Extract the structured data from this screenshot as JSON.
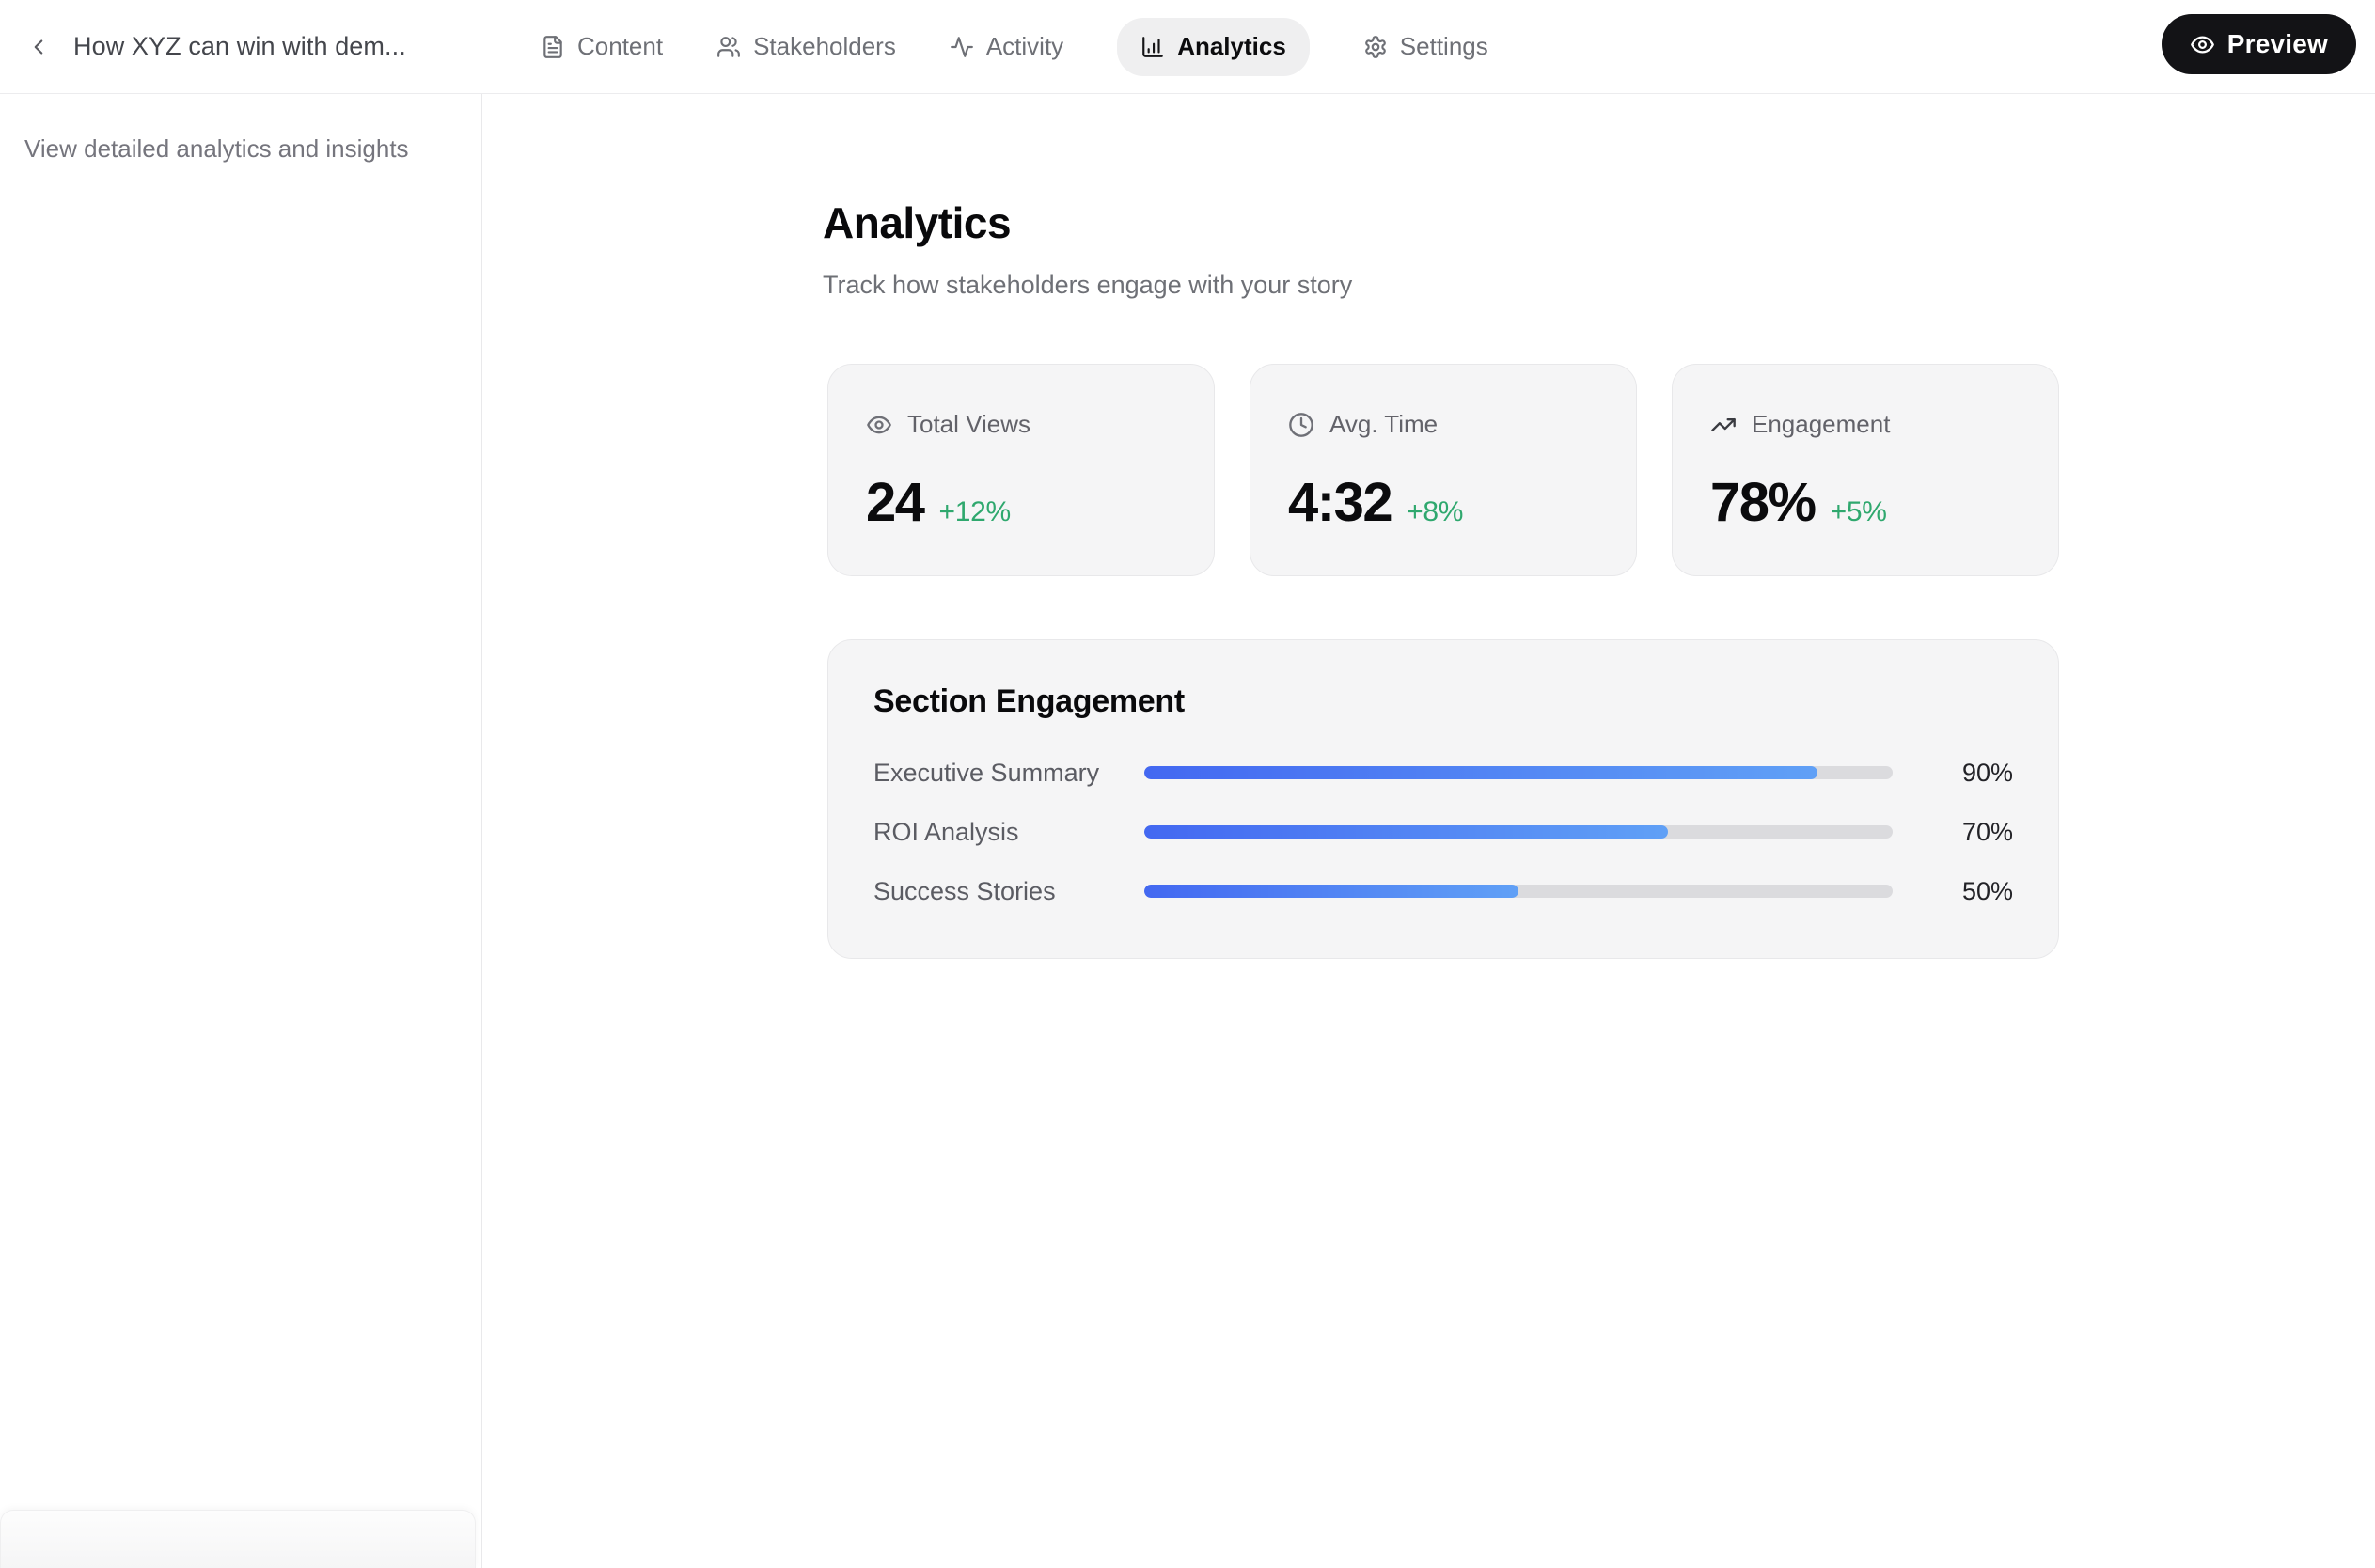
{
  "header": {
    "document_title": "How XYZ can win with dem...",
    "tabs": [
      {
        "label": "Content",
        "icon": "file-text-icon",
        "active": false
      },
      {
        "label": "Stakeholders",
        "icon": "users-icon",
        "active": false
      },
      {
        "label": "Activity",
        "icon": "activity-icon",
        "active": false
      },
      {
        "label": "Analytics",
        "icon": "bar-chart-icon",
        "active": true
      },
      {
        "label": "Settings",
        "icon": "gear-icon",
        "active": false
      }
    ],
    "preview_button": {
      "label": "Preview",
      "icon": "eye-icon"
    }
  },
  "sidebar": {
    "description": "View detailed analytics and insights"
  },
  "main": {
    "title": "Analytics",
    "subtitle": "Track how stakeholders engage with your story",
    "stats": [
      {
        "label": "Total Views",
        "icon": "eye-icon",
        "value": "24",
        "delta": "+12%"
      },
      {
        "label": "Avg. Time",
        "icon": "clock-icon",
        "value": "4:32",
        "delta": "+8%"
      },
      {
        "label": "Engagement",
        "icon": "trending-up-icon",
        "value": "78%",
        "delta": "+5%"
      }
    ],
    "section_engagement": {
      "title": "Section Engagement",
      "rows": [
        {
          "label": "Executive Summary",
          "percent": 90,
          "percent_label": "90%"
        },
        {
          "label": "ROI Analysis",
          "percent": 70,
          "percent_label": "70%"
        },
        {
          "label": "Success Stories",
          "percent": 50,
          "percent_label": "50%"
        }
      ]
    }
  },
  "colors": {
    "accent_green": "#2fa86e",
    "bar_fill_start": "#4368f1",
    "bar_fill_end": "#60a0f6",
    "bar_track": "#dbdbde",
    "card_background": "#f5f5f6",
    "active_tab_background": "#efeff0",
    "preview_button_background": "#131316"
  }
}
